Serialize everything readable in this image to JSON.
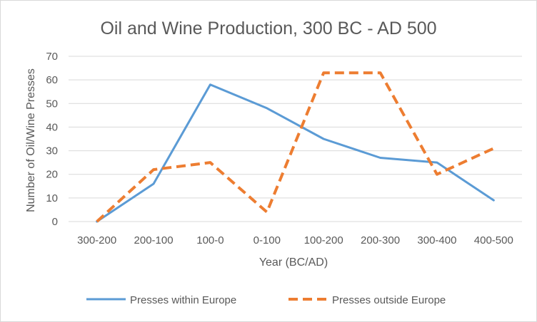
{
  "chart_data": {
    "type": "line",
    "title": "Oil and Wine Production, 300 BC - AD 500",
    "xlabel": "Year (BC/AD)",
    "ylabel": "Number of Oil/Wine Presses",
    "categories": [
      "300-200",
      "200-100",
      "100-0",
      "0-100",
      "100-200",
      "200-300",
      "300-400",
      "400-500"
    ],
    "ylim": [
      0,
      70
    ],
    "yticks": [
      "0",
      "10",
      "20",
      "30",
      "40",
      "50",
      "60",
      "70"
    ],
    "grid": true,
    "legend_position": "bottom",
    "series": [
      {
        "name": "Presses within Europe",
        "values": [
          0,
          16,
          58,
          48,
          35,
          27,
          25,
          9
        ],
        "color": "#5b9bd5",
        "style": "solid"
      },
      {
        "name": "Presses outside Europe",
        "values": [
          0,
          22,
          25,
          4,
          63,
          63,
          20,
          31
        ],
        "color": "#ed7d31",
        "style": "dashed"
      }
    ]
  }
}
